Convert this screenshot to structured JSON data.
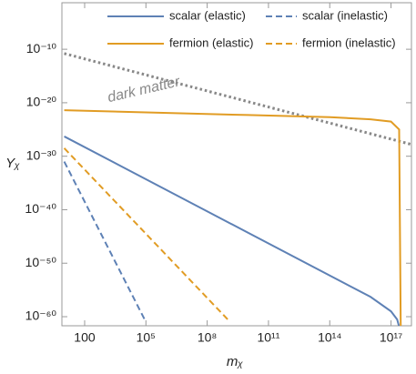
{
  "chart_data": {
    "type": "line",
    "x_label": "mᵪ",
    "y_label": "Yᵪ",
    "xscale": "log",
    "yscale": "log",
    "xlim": [
      7.7,
      1e+18
    ],
    "ylim": [
      0.05,
      2e-62
    ],
    "xticks": [
      100,
      {
        "value": 100000.0,
        "label": "10⁵"
      },
      {
        "value": 100000000.0,
        "label": "10⁸"
      },
      {
        "value": 100000000000.0,
        "label": "10¹¹"
      },
      {
        "value": 100000000000000.0,
        "label": "10¹⁴"
      },
      {
        "value": 1e+17,
        "label": "10¹⁷"
      }
    ],
    "yticks": [
      {
        "value": 1e-10,
        "label": "10⁻¹⁰"
      },
      {
        "value": 1e-20,
        "label": "10⁻²⁰"
      },
      {
        "value": 1e-30,
        "label": "10⁻³⁰"
      },
      {
        "value": 1e-40,
        "label": "10⁻⁴⁰"
      },
      {
        "value": 1e-50,
        "label": "10⁻⁵⁰"
      },
      {
        "value": 1e-60,
        "label": "10⁻⁶⁰"
      }
    ],
    "legend": "top",
    "series": [
      {
        "name": "scalar (elastic)",
        "color": "#5e81b5",
        "dash": "solid",
        "x": [
          10,
          100000000.0,
          1e+16,
          1e+17,
          2e+17,
          3e+17
        ],
        "values": [
          5e-27,
          5e-41,
          5e-57,
          1e-59,
          3e-61,
          1e-63
        ]
      },
      {
        "name": "scalar (inelastic)",
        "color": "#5e81b5",
        "dash": "dashed",
        "x": [
          10,
          100,
          1000,
          10000,
          100000
        ],
        "values": [
          1e-31,
          3.2e-39,
          1e-46,
          3.2e-54,
          1e-61
        ]
      },
      {
        "name": "fermion (elastic)",
        "color": "#e19c24",
        "dash": "solid",
        "x": [
          10,
          100000.0,
          10000000000.0,
          100000000000000.0,
          1e+16,
          1e+17,
          2.5e+17,
          3e+17
        ],
        "values": [
          4e-22,
          1.6e-22,
          5e-23,
          2e-23,
          8e-24,
          3e-24,
          1e-25,
          1e-63
        ]
      },
      {
        "name": "fermion (inelastic)",
        "color": "#e19c24",
        "dash": "dashed",
        "x": [
          10,
          1000,
          100000,
          10000000.0,
          1000000000.0
        ],
        "values": [
          3.2e-29,
          3.2e-37,
          3.2e-45,
          3.2e-53,
          3.2e-61
        ]
      }
    ],
    "reference_curve": {
      "label": "dark matter",
      "color": "#888888",
      "dash": "dotted",
      "x": [
        10,
        1e+18
      ],
      "values": [
        1.6e-11,
        1.6e-28
      ]
    }
  }
}
